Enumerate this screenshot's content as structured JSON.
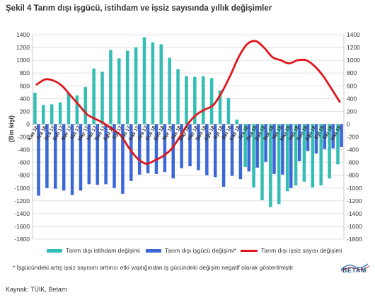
{
  "header": {
    "title": "Şekil 4 Tarım dışı işgücü, istihdam ve işsiz sayısında yıllık değişimler"
  },
  "legend": {
    "employment": "Tarım dışı istihdam değişimi",
    "laborforce": "Tarım dışı işgücü değişimi*",
    "unemployed": "Tarım dışı işsiz sayısı değişimi"
  },
  "footnote": "* İşgücündeki artış işsiz sayısını arttırıcı etki yaptığından iş gücündeki değişim negatif olarak gösterilmiştir.",
  "source": "Kaynak: TÜİK, Betam",
  "logo": {
    "text": "BETAM"
  },
  "colors": {
    "employment": "#33bdb5",
    "laborforce": "#3c67d6",
    "unemployed": "#e0161b",
    "grid": "#d9d9d9"
  },
  "chart_data": {
    "type": "bar",
    "ylabel": "(Bin kişi)",
    "ylim": [
      -1800,
      1400
    ],
    "yticks": [
      1400,
      1200,
      1000,
      800,
      600,
      400,
      200,
      0,
      -200,
      -400,
      -600,
      -800,
      -1000,
      -1200,
      -1400,
      -1600,
      -1800
    ],
    "grid": true,
    "legend_position": "bottom",
    "categories": [
      "Kas 16",
      "Ara 16",
      "Oca 17",
      "Şub 17",
      "Mar 17",
      "Nis 17",
      "May 17",
      "Haz 17",
      "Tem 17",
      "Ağu 17",
      "Eyl 17",
      "Eki 17",
      "Kas 17",
      "Ara 17",
      "Oca 18",
      "Şub 18",
      "Mar 18",
      "Nis 18",
      "May 18",
      "Haz 18",
      "Tem 18",
      "Ağu 18",
      "Eyl 18",
      "Eki 18",
      "Kas 18",
      "Ara 18",
      "Oca 19",
      "Şub 19",
      "Mar 19",
      "Nis 19",
      "May 19",
      "Haz 19",
      "Tem 19",
      "Ağu 19",
      "Eyl 19",
      "Eki 19",
      "Kas 19"
    ],
    "xtick_labels": [
      "Kas 16",
      "Ara 16",
      "Oca 17",
      "Şub 17",
      "Mar 17",
      "Nis 17",
      "May 17",
      "Haz 17",
      "Tem 17",
      "Ağu 17",
      "Eyl 17",
      "Eki 17",
      "Kas 17",
      "Ara 17",
      "Oca 18",
      "Şub 18",
      "Mar 18",
      "Nis 18",
      "May 18",
      "Haz 18",
      "Tem 18",
      "Ağu 18",
      "Eyl 18",
      "Eki 18",
      "Kas 18",
      "Ara 18",
      "Oca 19",
      "Şub 19",
      "Mar 19",
      "Nis 19",
      "May 19",
      "Haz 19",
      "Tem 19",
      "Ağu 19",
      "Eyl 19",
      "Eki 19",
      "Kas 19"
    ],
    "series": [
      {
        "name": "Tarım dışı istihdam değişimi",
        "kind": "bar",
        "values": [
          490,
          300,
          310,
          340,
          490,
          450,
          580,
          870,
          820,
          1160,
          1030,
          1150,
          1200,
          1360,
          1280,
          1250,
          1040,
          860,
          750,
          740,
          750,
          720,
          530,
          410,
          70,
          -670,
          -990,
          -1190,
          -1300,
          -1250,
          -1050,
          -960,
          -900,
          -990,
          -960,
          -850,
          -630
        ]
      },
      {
        "name": "Tarım dışı işgücü değişimi*",
        "kind": "bar",
        "values": [
          -1120,
          -1000,
          -1010,
          -1040,
          -1110,
          -1040,
          -940,
          -950,
          -940,
          -1000,
          -1090,
          -890,
          -790,
          -770,
          -780,
          -750,
          -850,
          -690,
          -660,
          -720,
          -800,
          -830,
          -980,
          -810,
          -860,
          -740,
          -680,
          -590,
          -780,
          -790,
          -1000,
          -580,
          -420,
          -460,
          -390,
          -380,
          -360
        ]
      },
      {
        "name": "Tarım dışı işsiz sayısı değişimi",
        "kind": "line",
        "values": [
          620,
          700,
          680,
          600,
          450,
          300,
          150,
          80,
          10,
          -80,
          -180,
          -380,
          -540,
          -620,
          -570,
          -500,
          -390,
          -200,
          10,
          150,
          230,
          300,
          500,
          760,
          1050,
          1250,
          1300,
          1200,
          1050,
          1000,
          950,
          1000,
          1000,
          910,
          760,
          560,
          350
        ]
      }
    ]
  }
}
